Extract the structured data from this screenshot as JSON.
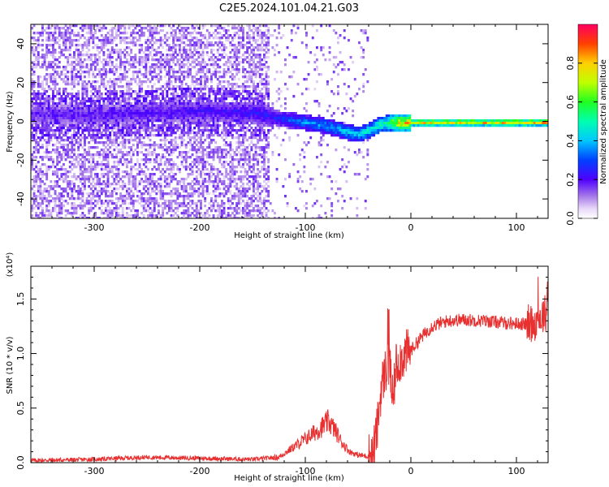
{
  "title": "C2E5.2024.101.04.21.G03",
  "chart_data": [
    {
      "type": "heatmap",
      "xlabel": "Height of straight line (km)",
      "ylabel": "Frequency (Hz)",
      "xlim": [
        -360,
        130
      ],
      "ylim": [
        -50,
        50
      ],
      "xticks": [
        -300,
        -200,
        -100,
        0,
        100
      ],
      "yticks": [
        -40,
        -20,
        0,
        20,
        40
      ],
      "colorbar": {
        "label": "Normalized spectral amplitude",
        "range": [
          0,
          1
        ],
        "ticks": [
          0.0,
          0.2,
          0.4,
          0.6,
          0.8
        ],
        "colormap": "rainbow"
      },
      "ridge": [
        {
          "x": -360,
          "f": 4
        },
        {
          "x": -300,
          "f": 4
        },
        {
          "x": -250,
          "f": 5
        },
        {
          "x": -200,
          "f": 6
        },
        {
          "x": -150,
          "f": 5
        },
        {
          "x": -125,
          "f": 2
        },
        {
          "x": -100,
          "f": 0
        },
        {
          "x": -80,
          "f": -2
        },
        {
          "x": -60,
          "f": -5
        },
        {
          "x": -50,
          "f": -6
        },
        {
          "x": -40,
          "f": -4
        },
        {
          "x": -30,
          "f": -1
        },
        {
          "x": -20,
          "f": 0
        },
        {
          "x": 0,
          "f": 0
        },
        {
          "x": 130,
          "f": 0
        }
      ],
      "ridge_amplitude": [
        {
          "x": -360,
          "a": 0.2
        },
        {
          "x": -280,
          "a": 0.22
        },
        {
          "x": -200,
          "a": 0.25
        },
        {
          "x": -130,
          "a": 0.3
        },
        {
          "x": -110,
          "a": 0.4
        },
        {
          "x": -80,
          "a": 0.45
        },
        {
          "x": -55,
          "a": 0.5
        },
        {
          "x": -40,
          "a": 0.55
        },
        {
          "x": -25,
          "a": 0.6
        },
        {
          "x": -15,
          "a": 0.85
        },
        {
          "x": 0,
          "a": 0.95
        },
        {
          "x": 130,
          "a": 0.95
        }
      ]
    },
    {
      "type": "line",
      "xlabel": "Height of straight line (km)",
      "ylabel": "SNR (10 * v/v)",
      "y_multiplier": "(x10⁴)",
      "xlim": [
        -360,
        130
      ],
      "ylim": [
        0,
        1.8
      ],
      "xticks": [
        -300,
        -200,
        -100,
        0,
        100
      ],
      "yticks": [
        0.0,
        0.5,
        1.0,
        1.5
      ],
      "series": [
        {
          "color": "#e83030",
          "x": [
            -360,
            -300,
            -250,
            -200,
            -150,
            -125,
            -110,
            -95,
            -85,
            -78,
            -72,
            -65,
            -58,
            -50,
            -42,
            -36,
            -32,
            -28,
            -24,
            -20,
            -17,
            -14,
            -10,
            -5,
            0,
            10,
            20,
            35,
            50,
            70,
            90,
            110,
            120,
            125,
            130
          ],
          "y": [
            0.02,
            0.03,
            0.05,
            0.04,
            0.03,
            0.05,
            0.15,
            0.25,
            0.32,
            0.38,
            0.3,
            0.18,
            0.1,
            0.07,
            0.06,
            0.08,
            0.3,
            0.7,
            0.85,
            0.9,
            0.55,
            0.9,
            0.95,
            1.0,
            1.03,
            1.15,
            1.25,
            1.3,
            1.31,
            1.3,
            1.28,
            1.27,
            1.3,
            1.35,
            1.4
          ]
        }
      ]
    }
  ]
}
